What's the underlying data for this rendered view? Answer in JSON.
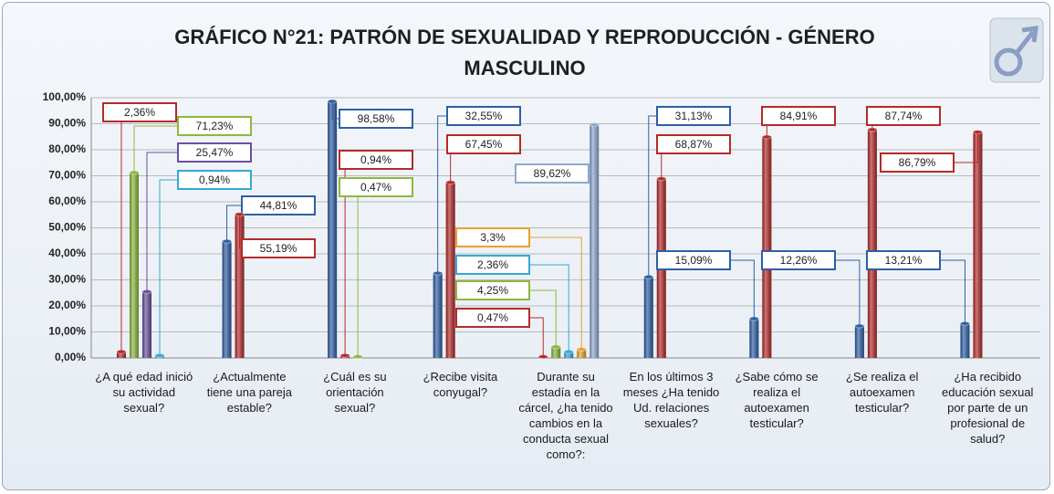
{
  "chart_data": {
    "type": "bar",
    "title": "GRÁFICO N°21: PATRÓN DE SEXUALIDAD Y REPRODUCCIÓN - GÉNERO MASCULINO",
    "categories": [
      "¿A qué edad inició su actividad sexual?",
      "¿Actualmente tiene una pareja estable?",
      "¿Cuál es su orientación sexual?",
      "¿Recibe visita conyugal?",
      "Durante su estadía en la cárcel, ¿ha tenido cambios en la conducta sexual como?:",
      "En los últimos 3 meses ¿Ha tenido Ud. relaciones sexuales?",
      "¿Sabe cómo se realiza el autoexamen testicular?",
      "¿Se realiza el autoexamen testicular?",
      "¿Ha recibido educación sexual por parte de un profesional de salud?"
    ],
    "groups": [
      {
        "bars": [
          {
            "value": 2.36,
            "value_label": "2,36%",
            "color": "#b52a2a"
          },
          {
            "value": 71.23,
            "value_label": "71,23%",
            "color": "#8db83e"
          },
          {
            "value": 25.47,
            "value_label": "25,47%",
            "color": "#6b4f9e"
          },
          {
            "value": 0.94,
            "value_label": "0,94%",
            "color": "#35a9d6"
          }
        ]
      },
      {
        "bars": [
          {
            "value": 44.81,
            "value_label": "44,81%",
            "color": "#2f5fa6"
          },
          {
            "value": 55.19,
            "value_label": "55,19%",
            "color": "#b52a2a"
          }
        ]
      },
      {
        "bars": [
          {
            "value": 98.58,
            "value_label": "98,58%",
            "color": "#2f5fa6"
          },
          {
            "value": 0.94,
            "value_label": "0,94%",
            "color": "#b52a2a"
          },
          {
            "value": 0.47,
            "value_label": "0,47%",
            "color": "#8db83e"
          }
        ]
      },
      {
        "bars": [
          {
            "value": 32.55,
            "value_label": "32,55%",
            "color": "#2f5fa6"
          },
          {
            "value": 67.45,
            "value_label": "67,45%",
            "color": "#b52a2a"
          }
        ]
      },
      {
        "bars": [
          {
            "value": 0.47,
            "value_label": "0,47%",
            "color": "#b52a2a"
          },
          {
            "value": 4.25,
            "value_label": "4,25%",
            "color": "#8db83e"
          },
          {
            "value": 2.36,
            "value_label": "2,36%",
            "color": "#35a9d6"
          },
          {
            "value": 3.3,
            "value_label": "3,3%",
            "color": "#e8a22a"
          },
          {
            "value": 89.62,
            "value_label": "89,62%",
            "color": "#8fa9d2"
          }
        ]
      },
      {
        "bars": [
          {
            "value": 31.13,
            "value_label": "31,13%",
            "color": "#2f5fa6"
          },
          {
            "value": 68.87,
            "value_label": "68,87%",
            "color": "#b52a2a"
          }
        ]
      },
      {
        "bars": [
          {
            "value": 15.09,
            "value_label": "15,09%",
            "color": "#2f5fa6"
          },
          {
            "value": 84.91,
            "value_label": "84,91%",
            "color": "#b52a2a"
          }
        ]
      },
      {
        "bars": [
          {
            "value": 12.26,
            "value_label": "12,26%",
            "color": "#2f5fa6"
          },
          {
            "value": 87.74,
            "value_label": "87,74%",
            "color": "#b52a2a"
          }
        ]
      },
      {
        "bars": [
          {
            "value": 13.21,
            "value_label": "13,21%",
            "color": "#2f5fa6"
          },
          {
            "value": 86.79,
            "value_label": "86,79%",
            "color": "#b52a2a"
          }
        ]
      }
    ],
    "ylim": [
      0,
      100
    ],
    "yticks": [
      {
        "value": 0,
        "label": "0,00%"
      },
      {
        "value": 10,
        "label": "10,00%"
      },
      {
        "value": 20,
        "label": "20,00%"
      },
      {
        "value": 30,
        "label": "30,00%"
      },
      {
        "value": 40,
        "label": "40,00%"
      },
      {
        "value": 50,
        "label": "50,00%"
      },
      {
        "value": 60,
        "label": "60,00%"
      },
      {
        "value": 70,
        "label": "70,00%"
      },
      {
        "value": 80,
        "label": "80,00%"
      },
      {
        "value": 90,
        "label": "90,00%"
      },
      {
        "value": 100,
        "label": "100,00%"
      }
    ],
    "grid": true
  }
}
